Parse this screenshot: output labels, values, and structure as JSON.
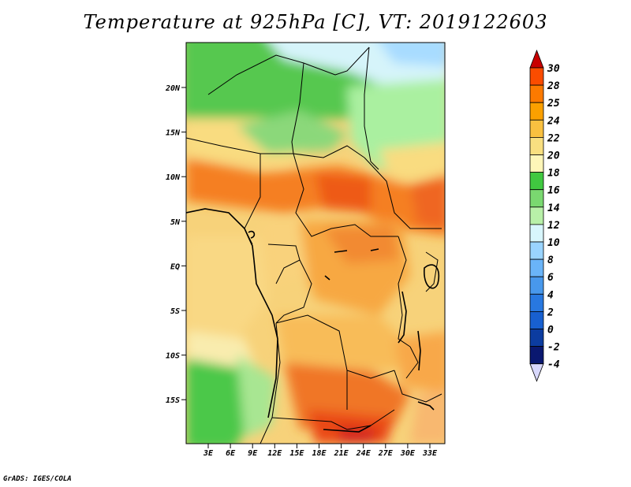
{
  "title": "Temperature at 925hPa [C], VT: 2019122603",
  "credit": "GrADS: IGES/COLA",
  "lat_ticks": [
    "20N",
    "15N",
    "10N",
    "5N",
    "EQ",
    "5S",
    "10S",
    "15S"
  ],
  "lon_ticks": [
    "3E",
    "6E",
    "9E",
    "12E",
    "15E",
    "18E",
    "21E",
    "24E",
    "27E",
    "30E",
    "33E"
  ],
  "colorbar": {
    "labels": [
      "30",
      "28",
      "25",
      "24",
      "22",
      "20",
      "18",
      "16",
      "14",
      "12",
      "10",
      "8",
      "6",
      "4",
      "2",
      "0",
      "-2",
      "-4"
    ],
    "colors": [
      "#f02000",
      "#fa4c00",
      "#fc7a00",
      "#fba000",
      "#f9c040",
      "#f9df80",
      "#fef6b8",
      "#40c840",
      "#7ad870",
      "#b8f0a8",
      "#d8f6fc",
      "#9ad4ff",
      "#6ab4f8",
      "#4898ec",
      "#2878e0",
      "#1860d0",
      "#0c3ca0",
      "#0a1870"
    ],
    "top_color": "#c80000",
    "bottom_color": "#d8d8fc"
  }
}
